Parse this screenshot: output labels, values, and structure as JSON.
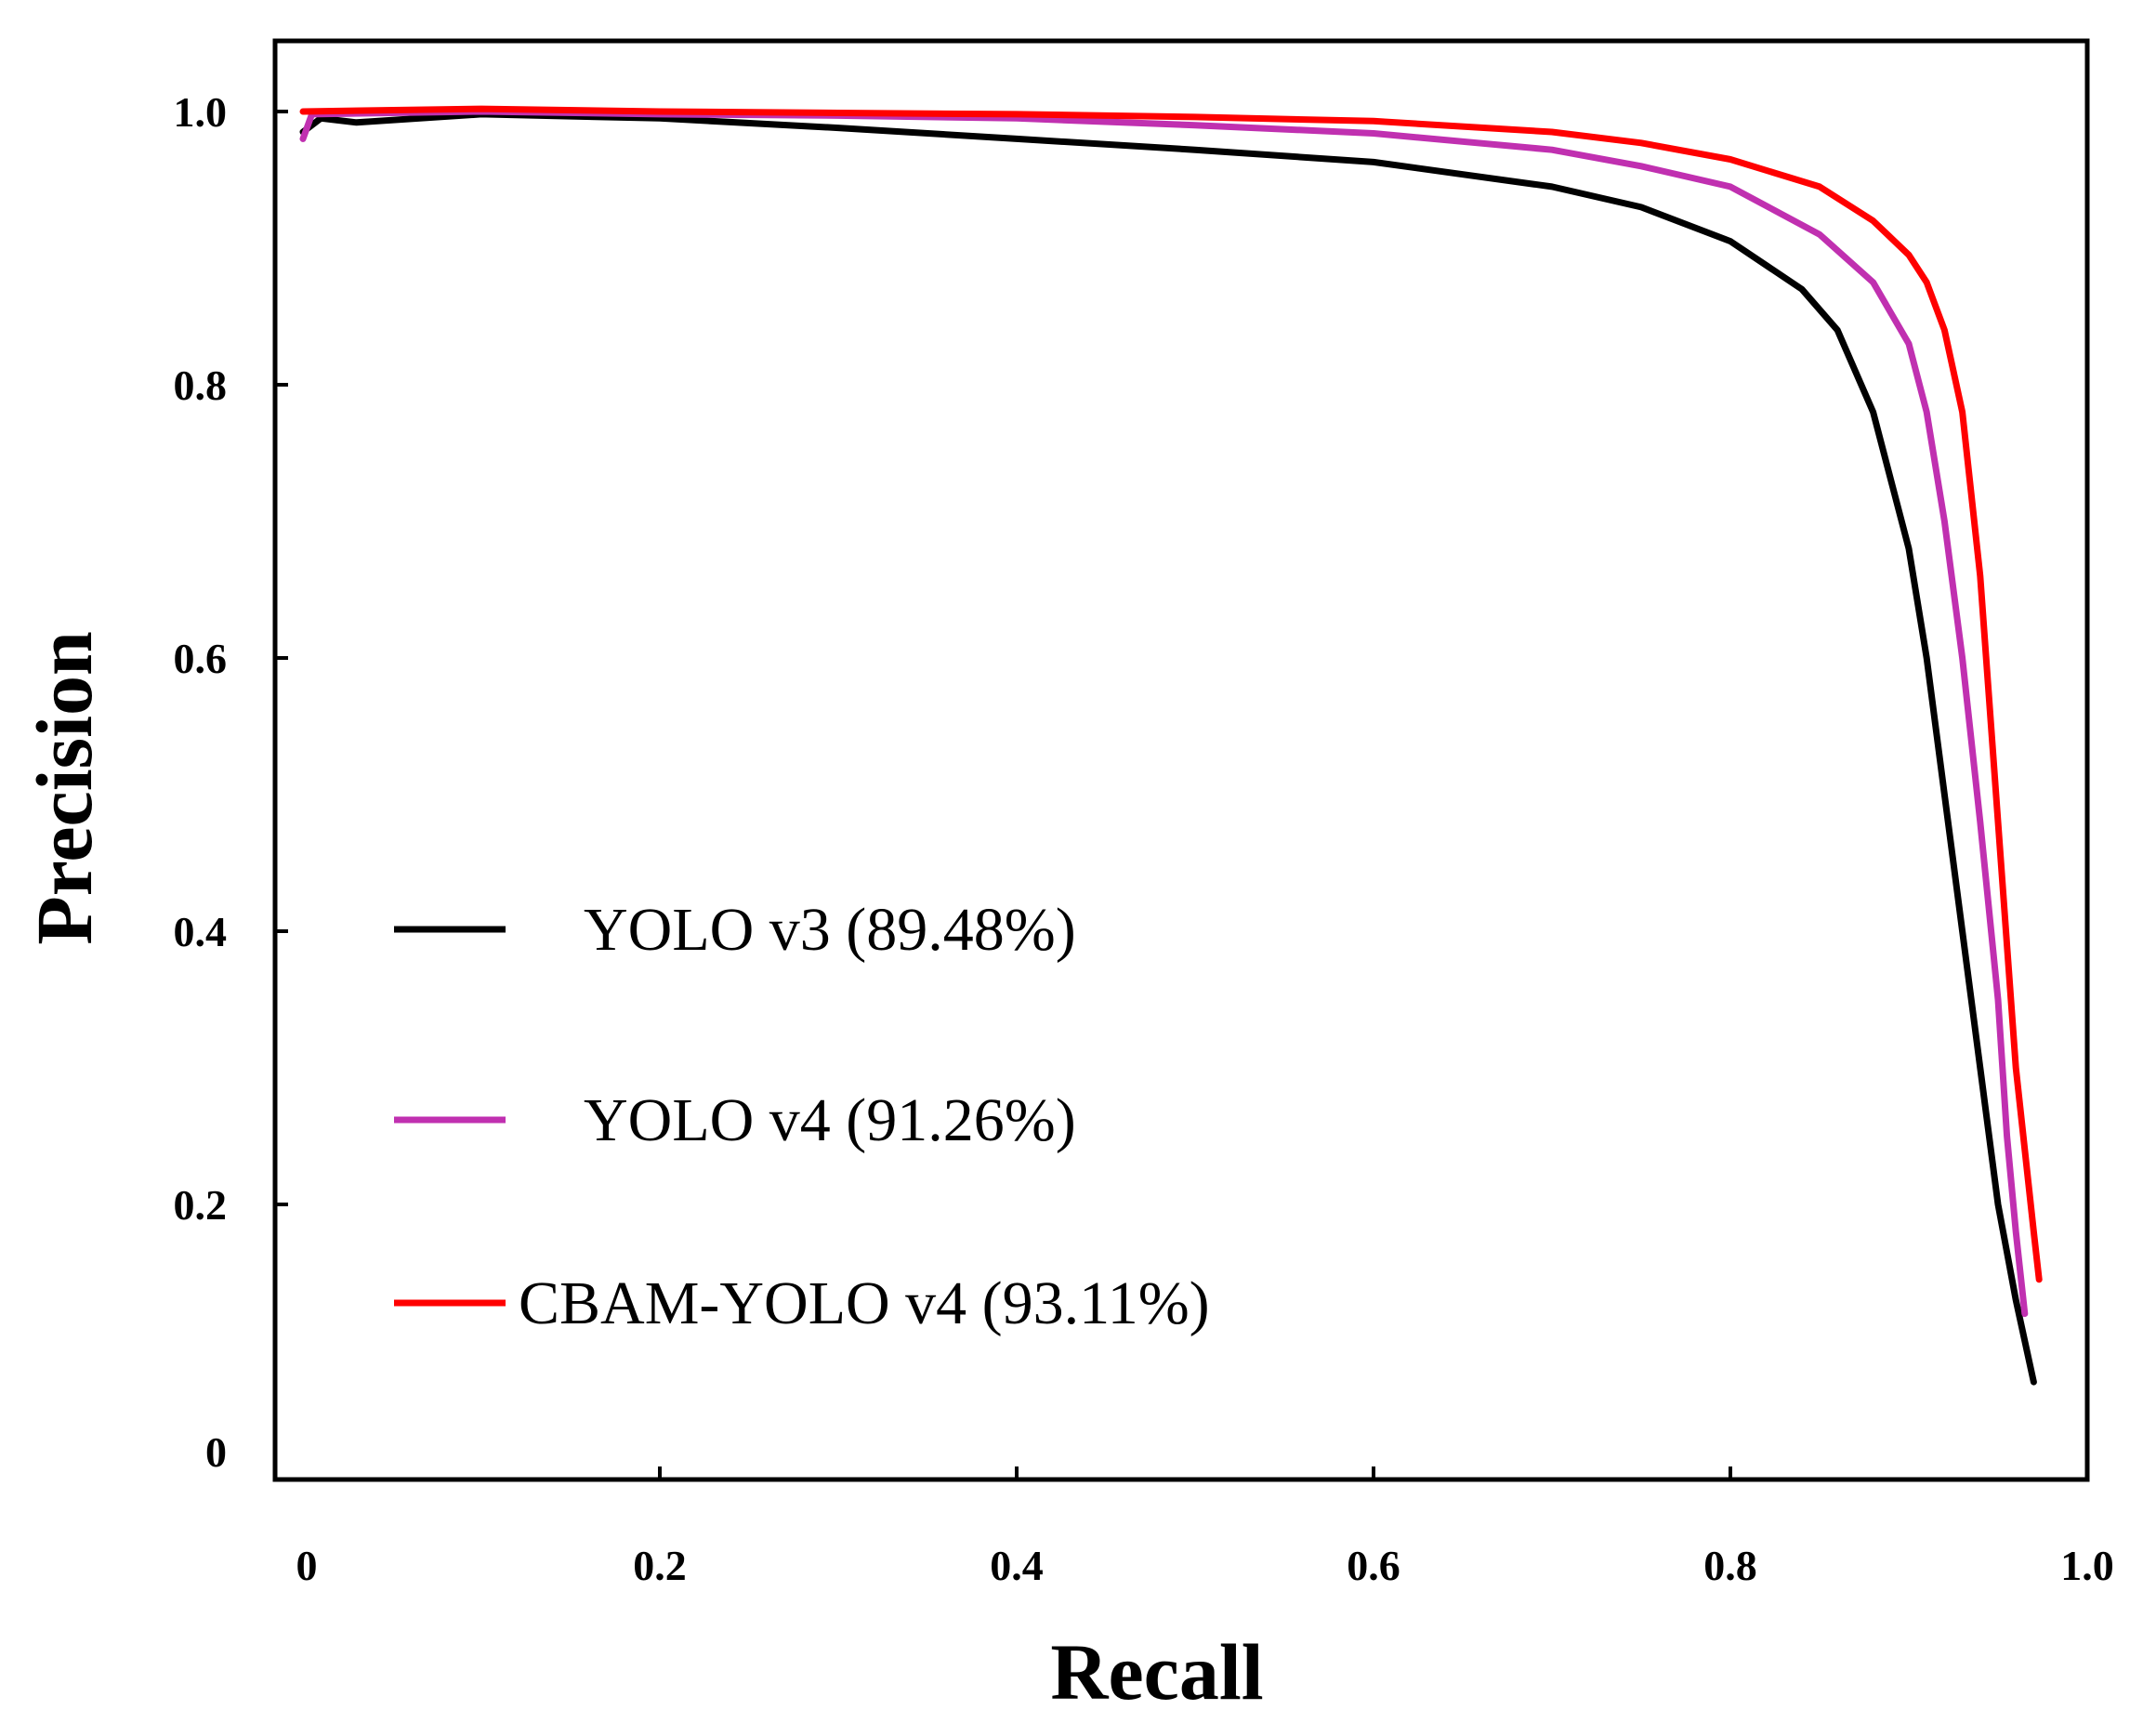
{
  "chart_data": {
    "type": "line",
    "title": "",
    "xlabel": "Recall",
    "ylabel": "Precision",
    "xlim": [
      0,
      1.0
    ],
    "ylim": [
      0,
      1.0
    ],
    "grid": false,
    "legend_position": "bottom-left",
    "x_tick_labels": [
      "0",
      "0.2",
      "0.4",
      "0.6",
      "0.8",
      "1.0"
    ],
    "y_tick_labels": [
      "0",
      "0.2",
      "0.4",
      "0.6",
      "0.8",
      "1.0"
    ],
    "x_ticks": [
      0,
      0.2,
      0.4,
      0.6,
      0.8,
      1.0
    ],
    "y_ticks": [
      0,
      0.2,
      0.4,
      0.6,
      0.8,
      1.0
    ],
    "series": [
      {
        "name": "YOLO v3 (89.48%)",
        "color": "#000000",
        "points": [
          [
            0.0,
            0.985
          ],
          [
            0.01,
            0.995
          ],
          [
            0.03,
            0.992
          ],
          [
            0.1,
            0.998
          ],
          [
            0.2,
            0.995
          ],
          [
            0.3,
            0.988
          ],
          [
            0.4,
            0.98
          ],
          [
            0.5,
            0.972
          ],
          [
            0.6,
            0.963
          ],
          [
            0.7,
            0.945
          ],
          [
            0.75,
            0.93
          ],
          [
            0.8,
            0.905
          ],
          [
            0.84,
            0.87
          ],
          [
            0.86,
            0.84
          ],
          [
            0.88,
            0.78
          ],
          [
            0.9,
            0.68
          ],
          [
            0.91,
            0.6
          ],
          [
            0.92,
            0.5
          ],
          [
            0.93,
            0.4
          ],
          [
            0.94,
            0.3
          ],
          [
            0.95,
            0.2
          ],
          [
            0.96,
            0.13
          ],
          [
            0.97,
            0.07
          ]
        ]
      },
      {
        "name": "YOLO v4 (91.26%)",
        "color": "#c030b0",
        "points": [
          [
            0.0,
            0.98
          ],
          [
            0.005,
            0.998
          ],
          [
            0.1,
            1.0
          ],
          [
            0.2,
            0.998
          ],
          [
            0.3,
            0.997
          ],
          [
            0.4,
            0.995
          ],
          [
            0.5,
            0.99
          ],
          [
            0.6,
            0.984
          ],
          [
            0.7,
            0.972
          ],
          [
            0.75,
            0.96
          ],
          [
            0.8,
            0.945
          ],
          [
            0.85,
            0.91
          ],
          [
            0.88,
            0.875
          ],
          [
            0.9,
            0.83
          ],
          [
            0.91,
            0.78
          ],
          [
            0.92,
            0.7
          ],
          [
            0.93,
            0.6
          ],
          [
            0.94,
            0.48
          ],
          [
            0.95,
            0.35
          ],
          [
            0.955,
            0.25
          ],
          [
            0.96,
            0.18
          ],
          [
            0.965,
            0.12
          ]
        ]
      },
      {
        "name": "CBAM-YOLO v4 (93.11%)",
        "color": "#ff0000",
        "points": [
          [
            0.0,
            1.0
          ],
          [
            0.1,
            1.002
          ],
          [
            0.2,
            1.0
          ],
          [
            0.3,
            0.999
          ],
          [
            0.4,
            0.998
          ],
          [
            0.5,
            0.996
          ],
          [
            0.6,
            0.993
          ],
          [
            0.7,
            0.985
          ],
          [
            0.75,
            0.977
          ],
          [
            0.8,
            0.965
          ],
          [
            0.85,
            0.945
          ],
          [
            0.88,
            0.92
          ],
          [
            0.9,
            0.895
          ],
          [
            0.91,
            0.875
          ],
          [
            0.92,
            0.84
          ],
          [
            0.93,
            0.78
          ],
          [
            0.94,
            0.66
          ],
          [
            0.95,
            0.48
          ],
          [
            0.96,
            0.3
          ],
          [
            0.97,
            0.18
          ],
          [
            0.973,
            0.145
          ]
        ]
      }
    ]
  }
}
